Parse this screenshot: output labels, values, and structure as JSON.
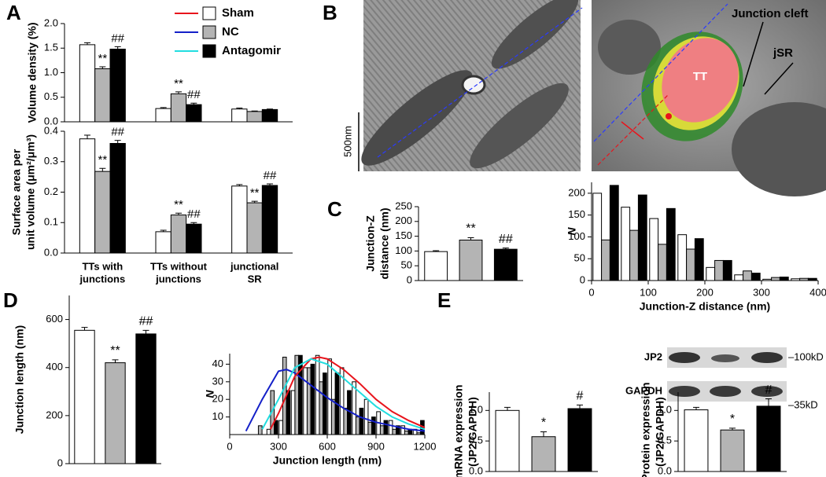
{
  "figure": {
    "panel_labels": [
      "A",
      "B",
      "C",
      "D",
      "E"
    ],
    "scale_bar": "500nm",
    "em_labels": {
      "tt": "TT",
      "cleft": "Junction cleft",
      "jsr": "jSR"
    },
    "blot": {
      "rows": [
        "JP2",
        "GAPDH"
      ],
      "markers": [
        "–100kD",
        "–35kD"
      ]
    }
  },
  "chart_data": [
    {
      "type": "bar",
      "y_label": "Volume density (%)",
      "ylim": [
        0,
        2
      ],
      "yticks": [
        {
          "value": 0,
          "label": "0.0"
        },
        0.5,
        {
          "value": 1,
          "label": "1.0"
        },
        1.5,
        {
          "value": 2,
          "label": "2.0"
        }
      ],
      "series": [
        {
          "name": "Sham",
          "color": "#ffffff",
          "line_color": "#e8141c",
          "values": [
            1.57,
            0.27,
            0.26
          ],
          "errors": [
            0.04,
            0.02,
            0.02
          ],
          "significance": [
            null,
            null,
            null
          ]
        },
        {
          "name": "NC",
          "color": "#b4b4b4",
          "line_color": "#1420c8",
          "values": [
            1.08,
            0.57,
            0.21
          ],
          "errors": [
            0.04,
            0.04,
            0.01
          ],
          "significance": [
            "**",
            "**",
            null
          ]
        },
        {
          "name": "Antagomir",
          "color": "#000000",
          "line_color": "#22dde0",
          "values": [
            1.48,
            0.35,
            0.25
          ],
          "errors": [
            0.05,
            0.03,
            0.01
          ],
          "significance": [
            "##",
            "##",
            null
          ]
        }
      ]
    },
    {
      "type": "bar",
      "y_label": [
        "Surface area per",
        "unit volume  (μm²/μm³)"
      ],
      "categories": [
        [
          "TTs with",
          "junctions"
        ],
        [
          "TTs without",
          "junctions"
        ],
        [
          "junctional",
          "SR"
        ]
      ],
      "ylim": [
        0,
        0.4
      ],
      "yticks": [
        {
          "value": 0,
          "label": "0.0"
        },
        0.1,
        0.2,
        0.3,
        0.4
      ],
      "series": [
        {
          "color": "#ffffff",
          "values": [
            0.375,
            0.07,
            0.22
          ],
          "errors": [
            0.012,
            0.005,
            0.005
          ],
          "significance": [
            null,
            null,
            null
          ]
        },
        {
          "color": "#b4b4b4",
          "values": [
            0.268,
            0.125,
            0.165
          ],
          "errors": [
            0.01,
            0.006,
            0.005
          ],
          "significance": [
            "**",
            "**",
            "**"
          ]
        },
        {
          "color": "#000000",
          "values": [
            0.36,
            0.095,
            0.222
          ],
          "errors": [
            0.01,
            0.005,
            0.005
          ],
          "significance": [
            "##",
            "##",
            "##"
          ]
        }
      ]
    },
    {
      "type": "bar",
      "y_label": [
        "Junction-Z",
        "distance (nm)"
      ],
      "ylim": [
        0,
        250
      ],
      "yticks": [
        0,
        50,
        100,
        150,
        200,
        250
      ],
      "values": [
        98,
        137,
        106
      ],
      "errors": [
        3,
        8,
        4
      ],
      "significance": [
        null,
        "**",
        "##"
      ],
      "colors": [
        "#ffffff",
        "#b4b4b4",
        "#000000"
      ]
    },
    {
      "type": "histogram",
      "y_label": "N",
      "x_label": "Junction-Z distance (nm)",
      "bins": [
        0,
        50,
        100,
        150,
        200,
        250,
        300,
        350,
        400
      ],
      "xlim": [
        0,
        400
      ],
      "xticks": [
        0,
        100,
        200,
        300,
        400
      ],
      "ylim": [
        0,
        225
      ],
      "yticks": [
        0,
        50,
        100,
        150,
        200
      ],
      "series": [
        {
          "color": "#ffffff",
          "values": [
            200,
            168,
            142,
            105,
            30,
            13,
            3,
            4
          ]
        },
        {
          "color": "#b4b4b4",
          "values": [
            93,
            115,
            83,
            72,
            46,
            22,
            7,
            5
          ]
        },
        {
          "color": "#000000",
          "values": [
            218,
            196,
            165,
            96,
            46,
            17,
            8,
            5
          ]
        }
      ]
    },
    {
      "type": "bar",
      "y_label": "Junction length (nm)",
      "ylim": [
        0,
        700
      ],
      "yticks": [
        0,
        200,
        400,
        600
      ],
      "values": [
        555,
        420,
        540
      ],
      "errors": [
        12,
        12,
        15
      ],
      "significance": [
        null,
        "**",
        "##"
      ],
      "colors": [
        "#ffffff",
        "#b4b4b4",
        "#000000"
      ]
    },
    {
      "type": "histogram",
      "y_label": "N",
      "x_label": "Junction length (nm)",
      "bins": [
        0,
        75,
        150,
        225,
        300,
        375,
        450,
        525,
        600,
        675,
        750,
        825,
        900,
        975,
        1050,
        1125,
        1200
      ],
      "xlim": [
        0,
        1200
      ],
      "xticks": [
        0,
        300,
        600,
        900,
        1200
      ],
      "ylim": [
        0,
        46
      ],
      "yticks": [
        10,
        20,
        30,
        40
      ],
      "series": [
        {
          "color": "#ffffff",
          "values": [
            0,
            0,
            0,
            3,
            8,
            25,
            38,
            45,
            43,
            38,
            30,
            20,
            13,
            8,
            5,
            3
          ]
        },
        {
          "color": "#b4b4b4",
          "values": [
            0,
            0,
            5,
            25,
            44,
            45,
            38,
            30,
            20,
            15,
            10,
            7,
            5,
            3,
            2,
            1
          ]
        },
        {
          "color": "#000000",
          "values": [
            0,
            0,
            0,
            8,
            25,
            45,
            40,
            35,
            35,
            25,
            15,
            10,
            8,
            5,
            3,
            8
          ]
        }
      ],
      "fits": [
        {
          "color": "#1420c8",
          "x": [
            100,
            200,
            300,
            350,
            400,
            500,
            600,
            700,
            800,
            900,
            1000,
            1100,
            1200
          ],
          "y": [
            2,
            20,
            36,
            37,
            35,
            28,
            21,
            15,
            10,
            7,
            5,
            3,
            2
          ]
        },
        {
          "color": "#e8141c",
          "x": [
            250,
            300,
            400,
            500,
            550,
            600,
            700,
            800,
            900,
            1000,
            1100,
            1200
          ],
          "y": [
            3,
            12,
            33,
            43,
            44,
            43,
            37,
            29,
            20,
            13,
            8,
            4
          ]
        },
        {
          "color": "#22dde0",
          "x": [
            200,
            300,
            400,
            500,
            600,
            700,
            800,
            900,
            1000,
            1100,
            1200
          ],
          "y": [
            3,
            20,
            38,
            43,
            40,
            32,
            24,
            16,
            10,
            6,
            3
          ]
        }
      ]
    },
    {
      "type": "bar",
      "y_label": [
        "mRNA expression",
        "(JP2/GAPDH)"
      ],
      "ylim": [
        0,
        1.3
      ],
      "yticks": [
        {
          "value": 0,
          "label": "0.0"
        },
        0.5,
        {
          "value": 1,
          "label": "1.0"
        }
      ],
      "values": [
        1.0,
        0.57,
        1.03
      ],
      "errors": [
        0.05,
        0.08,
        0.06
      ],
      "significance": [
        null,
        "*",
        "#"
      ],
      "colors": [
        "#ffffff",
        "#b4b4b4",
        "#000000"
      ]
    },
    {
      "type": "bar",
      "y_label": [
        "Protein expression",
        "(JP2/GAPDH)"
      ],
      "ylim": [
        0,
        1.3
      ],
      "yticks": [
        {
          "value": 0,
          "label": "0.0"
        },
        0.5,
        {
          "value": 1,
          "label": "1.0"
        }
      ],
      "values": [
        1.01,
        0.68,
        1.07
      ],
      "errors": [
        0.04,
        0.03,
        0.12
      ],
      "significance": [
        null,
        "*",
        "#"
      ],
      "colors": [
        "#ffffff",
        "#b4b4b4",
        "#000000"
      ]
    }
  ]
}
